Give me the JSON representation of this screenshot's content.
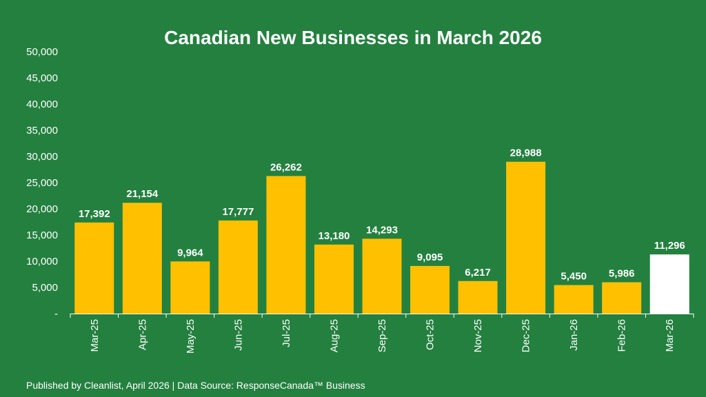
{
  "chart_data": {
    "type": "bar",
    "title": "Canadian New Businesses in March 2026",
    "xlabel": "",
    "ylabel": "",
    "categories": [
      "Mar-25",
      "Apr-25",
      "May-25",
      "Jun-25",
      "Jul-25",
      "Aug-25",
      "Sep-25",
      "Oct-25",
      "Nov-25",
      "Dec-25",
      "Jan-26",
      "Feb-26",
      "Mar-26"
    ],
    "values": [
      17392,
      21154,
      9964,
      17777,
      26262,
      13180,
      14293,
      9095,
      6217,
      28988,
      5450,
      5986,
      11296
    ],
    "data_labels": [
      "17,392",
      "21,154",
      "9,964",
      "17,777",
      "26,262",
      "13,180",
      "14,293",
      "9,095",
      "6,217",
      "28,988",
      "5,450",
      "5,986",
      "11,296"
    ],
    "y_tick_labels": [
      "-",
      "5,000",
      "10,000",
      "15,000",
      "20,000",
      "25,000",
      "30,000",
      "35,000",
      "40,000",
      "45,000",
      "50,000"
    ],
    "ylim": [
      0,
      50000
    ],
    "grid": false,
    "legend": "none",
    "highlight_category": "Mar-26"
  },
  "colors": {
    "background": "#24803f",
    "bar": "#ffc000",
    "highlight_bar": "#ffffff",
    "text": "#ffffff"
  },
  "footer": {
    "text": "Published by Cleanlist, April 2026 | Data Source: ResponseCanada™ Business"
  }
}
